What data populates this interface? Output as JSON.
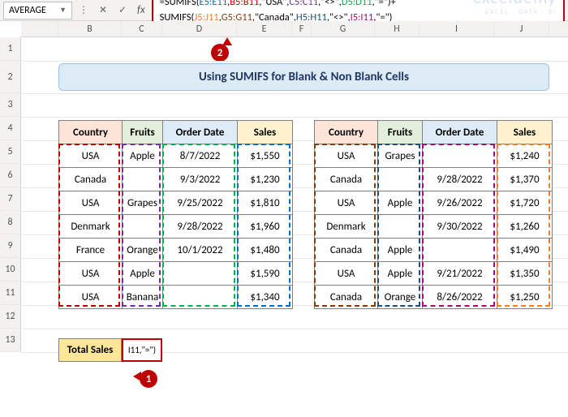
{
  "namebox": "AVERAGE",
  "formula_line1_parts": [
    {
      "t": "=SUMIFS(",
      "c": "txt"
    },
    {
      "t": "E5:E11",
      "c": "ref-blue"
    },
    {
      "t": ",",
      "c": "txt"
    },
    {
      "t": "B5:B11",
      "c": "ref-red"
    },
    {
      "t": ",\"USA\",",
      "c": "txt"
    },
    {
      "t": "C5:C11",
      "c": "ref-purple"
    },
    {
      "t": ",\"<>\",",
      "c": "txt"
    },
    {
      "t": "D5:D11",
      "c": "ref-green"
    },
    {
      "t": ",\"=\")+",
      "c": "txt"
    }
  ],
  "formula_line2_parts": [
    {
      "t": "SUMIFS(",
      "c": "txt"
    },
    {
      "t": "J5:J11",
      "c": "ref-orange"
    },
    {
      "t": ",",
      "c": "txt"
    },
    {
      "t": "G5:G11",
      "c": "ref-brown"
    },
    {
      "t": ",\"Canada\",",
      "c": "txt"
    },
    {
      "t": "H5:H11",
      "c": "ref-dblue"
    },
    {
      "t": ",\"<>\",",
      "c": "txt"
    },
    {
      "t": "I5:I11",
      "c": "ref-magenta"
    },
    {
      "t": ",\"=\")",
      "c": "txt"
    }
  ],
  "callout1": "1",
  "callout2": "2",
  "title": "Using SUMIFS for Blank & Non Blank Cells",
  "headers": {
    "country": "Country",
    "fruits": "Fruits",
    "order": "Order Date",
    "sales": "Sales"
  },
  "t1": [
    [
      "USA",
      "Apple",
      "8/7/2022",
      "$1,550"
    ],
    [
      "Canada",
      "",
      "9/3/2022",
      "$1,230"
    ],
    [
      "USA",
      "Grapes",
      "9/25/2022",
      "$1,810"
    ],
    [
      "Denmark",
      "",
      "9/28/2022",
      "$1,960"
    ],
    [
      "France",
      "Orange",
      "10/1/2022",
      "$1,480"
    ],
    [
      "USA",
      "Apple",
      "",
      "$1,590"
    ],
    [
      "USA",
      "Banana",
      "",
      "$1,340"
    ]
  ],
  "t2": [
    [
      "USA",
      "Grapes",
      "",
      "$1,240"
    ],
    [
      "Canada",
      "",
      "9/28/2022",
      "$1,370"
    ],
    [
      "USA",
      "Apple",
      "9/26/2022",
      "$1,720"
    ],
    [
      "Denmark",
      "",
      "9/30/2022",
      "$1,260"
    ],
    [
      "Canada",
      "Apple",
      "",
      "$1,490"
    ],
    [
      "USA",
      "Apple",
      "9/21/2022",
      "$1,350"
    ],
    [
      "Canada",
      "Orange",
      "8/26/2022",
      "$1,250"
    ]
  ],
  "total_label": "Total Sales",
  "total_cell": "I11,\"=\")",
  "cols": {
    "B": 78,
    "C": 50,
    "D": 92,
    "E": 68,
    "F": 24,
    "G": 78,
    "H": 55,
    "I": 92,
    "J": 68
  },
  "col_letters": [
    "B",
    "C",
    "D",
    "E",
    "F",
    "G",
    "H",
    "I",
    "J"
  ],
  "row_nums": [
    "1",
    "2",
    "3",
    "4",
    "5",
    "6",
    "7",
    "8",
    "9",
    "10",
    "11",
    "12",
    "13"
  ],
  "sel_colors": {
    "t1c0": "#c00000",
    "t1c1": "#7030a0",
    "t1c2": "#00b050",
    "t1c3": "#0070c0",
    "t2c0": "#833c0c",
    "t2c1": "#1f4e78",
    "t2c2": "#a60a76",
    "t2c3": "#ed7d31"
  },
  "watermark": {
    "line1": "exceldemy",
    "line2": "EXCEL · DATA · BI"
  }
}
